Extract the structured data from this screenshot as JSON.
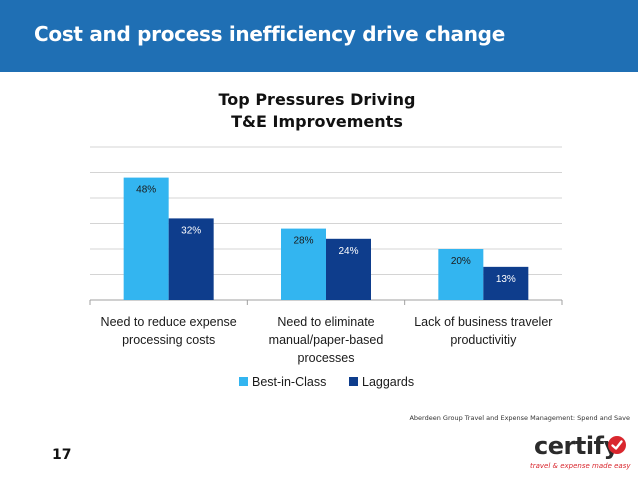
{
  "header": {
    "title": "Cost and process inefficiency drive change"
  },
  "page_number": "17",
  "source_note": "Aberdeen Group Travel and Expense Management: Spend and Save",
  "logo": {
    "wordmark": "certify",
    "tagline": "travel & expense made easy"
  },
  "colors": {
    "header_bg": "#1f6fb4",
    "best_in_class": "#33b5f0",
    "laggards": "#0e3d8c",
    "logo_red": "#d9272e"
  },
  "chart_data": {
    "type": "bar",
    "title_lines": [
      "Top Pressures Driving",
      "T&E Improvements"
    ],
    "categories": [
      [
        "Need to reduce expense",
        "processing costs"
      ],
      [
        "Need to eliminate",
        "manual/paper-based",
        "processes"
      ],
      [
        "Lack of business traveler",
        "productivitiy"
      ]
    ],
    "series": [
      {
        "name": "Best-in-Class",
        "values": [
          48,
          28,
          20
        ],
        "labels": [
          "48%",
          "28%",
          "20%"
        ]
      },
      {
        "name": "Laggards",
        "values": [
          32,
          24,
          13
        ],
        "labels": [
          "32%",
          "24%",
          "13%"
        ]
      }
    ],
    "ylim": [
      0,
      60
    ],
    "grid": true,
    "legend_position": "bottom"
  }
}
